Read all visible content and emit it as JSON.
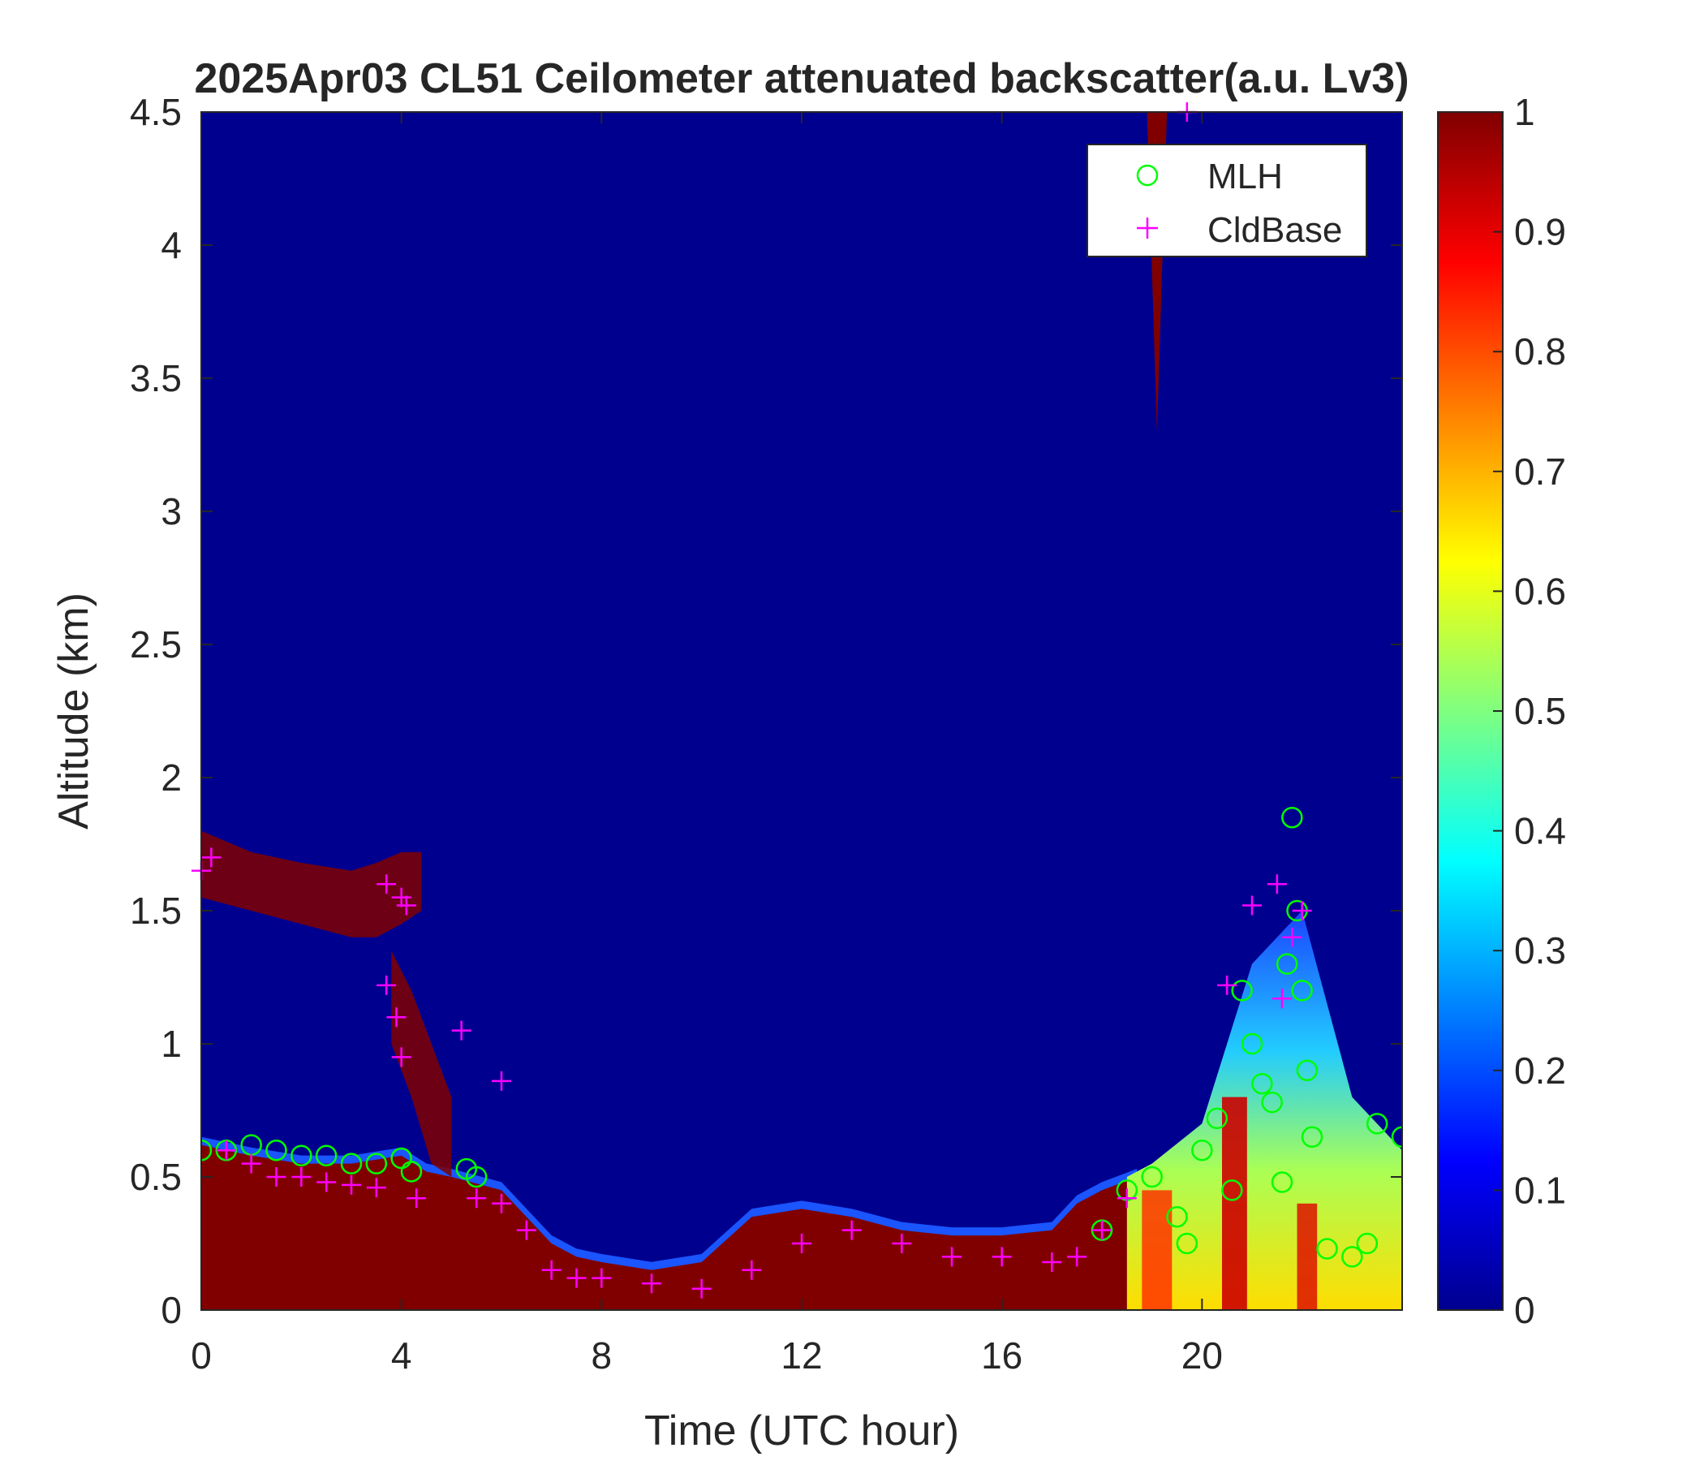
{
  "chart_data": {
    "type": "heatmap",
    "title": "2025Apr03 CL51 Ceilometer attenuated backscatter(a.u. Lv3)",
    "xlabel": "Time (UTC hour)",
    "ylabel": "Altitude (km)",
    "xlim": [
      0,
      24
    ],
    "ylim": [
      0,
      4.5
    ],
    "x_ticks": [
      0,
      4,
      8,
      12,
      16,
      20
    ],
    "y_ticks": [
      0,
      0.5,
      1,
      1.5,
      2,
      2.5,
      3,
      3.5,
      4,
      4.5
    ],
    "x_tick_labels": [
      "0",
      "4",
      "8",
      "12",
      "16",
      "20"
    ],
    "y_tick_labels": [
      "0",
      "0.5",
      "1",
      "1.5",
      "2",
      "2.5",
      "3",
      "3.5",
      "4",
      "4.5"
    ],
    "colorbar": {
      "colormap": "jet",
      "range": [
        0,
        1
      ],
      "ticks": [
        0,
        0.1,
        0.2,
        0.3,
        0.4,
        0.5,
        0.6,
        0.7,
        0.8,
        0.9,
        1
      ],
      "tick_labels": [
        "0",
        "0.1",
        "0.2",
        "0.3",
        "0.4",
        "0.5",
        "0.6",
        "0.7",
        "0.8",
        "0.9",
        "1"
      ]
    },
    "legend": {
      "placement": "top-right",
      "entries": [
        {
          "name": "MLH",
          "marker": "circle",
          "color": "#00ff00"
        },
        {
          "name": "CldBase",
          "marker": "plus",
          "color": "#ff00ff"
        }
      ]
    },
    "aerosol_layer_top_km": {
      "x": [
        0,
        0.5,
        1,
        2,
        3,
        4,
        4.5,
        5,
        6,
        7,
        7.5,
        8,
        9,
        10,
        11,
        12,
        13,
        14,
        15,
        16,
        17,
        17.5,
        18,
        18.7
      ],
      "y": [
        0.62,
        0.6,
        0.58,
        0.55,
        0.55,
        0.58,
        0.52,
        0.5,
        0.45,
        0.25,
        0.2,
        0.18,
        0.15,
        0.18,
        0.35,
        0.38,
        0.35,
        0.3,
        0.28,
        0.28,
        0.3,
        0.4,
        0.45,
        0.5
      ]
    },
    "residual_layer_km": {
      "x": [
        0,
        1,
        2,
        3,
        3.5,
        4,
        4.4
      ],
      "base": [
        1.55,
        1.5,
        1.45,
        1.4,
        1.4,
        1.45,
        1.5
      ],
      "top": [
        1.8,
        1.72,
        1.68,
        1.65,
        1.68,
        1.72,
        1.72
      ]
    },
    "falling_layer_km": {
      "x": [
        3.8,
        4.2,
        4.6,
        5.0
      ],
      "base": [
        1.0,
        0.8,
        0.55,
        0.5
      ],
      "top": [
        1.35,
        1.2,
        1.0,
        0.8
      ]
    },
    "high_cloud": {
      "x": [
        18.9,
        19.3
      ],
      "base_km": 3.3,
      "top_km": 4.5
    },
    "evening_mixed_layer": {
      "x": [
        18.5,
        19,
        20,
        20.5,
        21,
        22,
        23,
        24
      ],
      "y": [
        0.5,
        0.55,
        0.7,
        1.0,
        1.3,
        1.5,
        0.8,
        0.6
      ]
    },
    "MLH": {
      "x": [
        0,
        0.5,
        1,
        1.5,
        2,
        2.5,
        3,
        3.5,
        4,
        4.2,
        5.3,
        5.5,
        18,
        18.5,
        19,
        19.5,
        19.7,
        20,
        20.3,
        20.6,
        20.8,
        21,
        21.2,
        21.4,
        21.6,
        21.7,
        21.8,
        21.9,
        22.0,
        22.1,
        22.2,
        22.5,
        23,
        23.3,
        23.5,
        24
      ],
      "y": [
        0.6,
        0.6,
        0.62,
        0.6,
        0.58,
        0.58,
        0.55,
        0.55,
        0.57,
        0.52,
        0.53,
        0.5,
        0.3,
        0.45,
        0.5,
        0.35,
        0.25,
        0.6,
        0.72,
        0.45,
        1.2,
        1.0,
        0.85,
        0.78,
        0.48,
        1.3,
        1.85,
        1.5,
        1.2,
        0.9,
        0.65,
        0.23,
        0.2,
        0.25,
        0.7,
        0.65
      ]
    },
    "CldBase": {
      "x": [
        0,
        0.2,
        0.5,
        1,
        1.5,
        2,
        2.5,
        3,
        3.5,
        3.7,
        4,
        4.1,
        3.7,
        3.9,
        4.0,
        4.3,
        5.2,
        6.0,
        5.5,
        6,
        6.5,
        7,
        7.5,
        8,
        9,
        10,
        11,
        12,
        13,
        14,
        15,
        16,
        17,
        17.5,
        18,
        18.5,
        19.7,
        20.5,
        21.0,
        21.5,
        21.6,
        21.8,
        22.0
      ],
      "y": [
        1.65,
        1.7,
        0.6,
        0.55,
        0.5,
        0.5,
        0.48,
        0.47,
        0.46,
        1.6,
        1.55,
        1.52,
        1.22,
        1.1,
        0.95,
        0.42,
        1.05,
        0.86,
        0.42,
        0.4,
        0.3,
        0.15,
        0.12,
        0.12,
        0.1,
        0.08,
        0.15,
        0.25,
        0.3,
        0.25,
        0.2,
        0.2,
        0.18,
        0.2,
        0.3,
        0.42,
        4.5,
        1.22,
        1.52,
        1.6,
        1.17,
        1.4,
        1.5
      ]
    }
  }
}
